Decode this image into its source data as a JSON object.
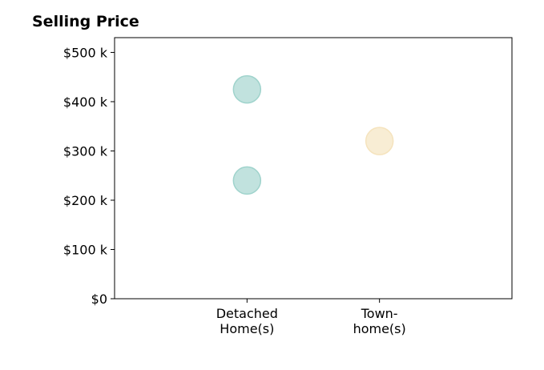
{
  "chart_data": {
    "type": "scatter",
    "title": "Selling Price",
    "xlabel": "",
    "ylabel": "",
    "categories": [
      "Detached\nHome(s)",
      "Town-\nhome(s)"
    ],
    "category_label_lines": [
      [
        "Detached",
        "Home(s)"
      ],
      [
        "Town-",
        "home(s)"
      ]
    ],
    "x_range": [
      -1,
      2
    ],
    "ylim": [
      0,
      530000
    ],
    "y_ticks": [
      0,
      100000,
      200000,
      300000,
      400000,
      500000
    ],
    "y_tick_labels": [
      "$0",
      "$100 k",
      "$200 k",
      "$300 k",
      "$400 k",
      "$500 k"
    ],
    "series": [
      {
        "color": "#9fd3cc",
        "points": [
          {
            "category": "Detached\nHome(s)",
            "y": 425000
          },
          {
            "category": "Detached\nHome(s)",
            "y": 240000
          }
        ]
      },
      {
        "color": "#f5e3bd",
        "points": [
          {
            "category": "Town-\nhome(s)",
            "y": 320000
          }
        ]
      }
    ],
    "grid": false,
    "legend": "none"
  }
}
